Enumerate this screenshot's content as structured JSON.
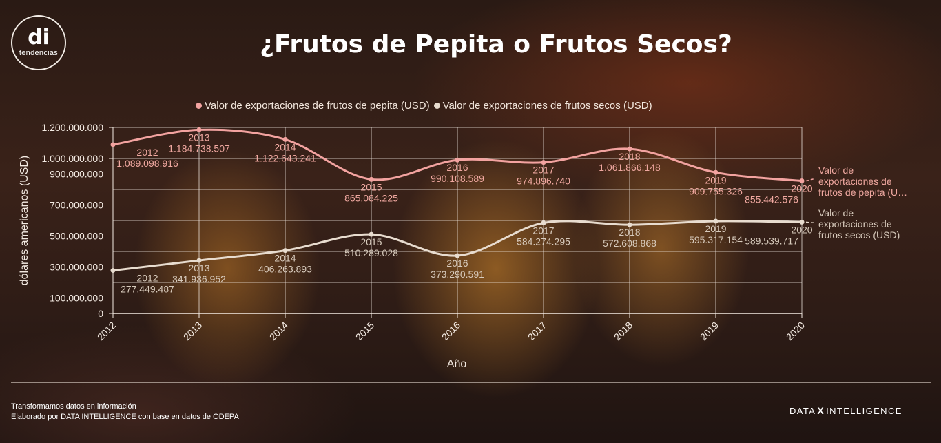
{
  "logo": {
    "mark": "di",
    "text": "tendencias"
  },
  "title": "¿Frutos de Pepita o Frutos Secos?",
  "footer": {
    "line1": "Transformamos datos en información",
    "line2": "Elaborado por DATA INTELLIGENCE con base en datos de ODEPA"
  },
  "brand": {
    "left": "DATA",
    "mark": "X",
    "right": "INTELLIGENCE"
  },
  "colors": {
    "pepita": "#f3a3a0",
    "secos": "#e8dccf"
  },
  "chart_data": {
    "type": "line",
    "title": "¿Frutos de Pepita o Frutos Secos?",
    "xlabel": "Año",
    "ylabel": "dólares americanos (USD)",
    "x": [
      "2012",
      "2013",
      "2014",
      "2015",
      "2016",
      "2017",
      "2018",
      "2019",
      "2020"
    ],
    "ylim": [
      0,
      1200000000
    ],
    "yticks": [
      {
        "value": 0,
        "label": "0"
      },
      {
        "value": 100000000,
        "label": "100.000.000"
      },
      {
        "value": 300000000,
        "label": "300.000.000"
      },
      {
        "value": 500000000,
        "label": "500.000.000"
      },
      {
        "value": 700000000,
        "label": "700.000.000"
      },
      {
        "value": 900000000,
        "label": "900.000.000"
      },
      {
        "value": 1000000000,
        "label": "1.000.000.000"
      },
      {
        "value": 1200000000,
        "label": "1.200.000.000"
      }
    ],
    "grid": true,
    "legend_position": "top",
    "series": [
      {
        "name": "Valor de exportaciones de frutos de pepita (USD)",
        "end_label": [
          "Valor de",
          "exportaciones de",
          "frutos de pepita (U…"
        ],
        "color": "#f3a3a0",
        "values": [
          1089098916,
          1184738507,
          1122643241,
          865084225,
          990108589,
          974896740,
          1061866148,
          909755326,
          855442576
        ],
        "labels": [
          "1.089.098.916",
          "1.184.738.507",
          "1.122.643.241",
          "865.084.225",
          "990.108.589",
          "974.896.740",
          "1.061.866.148",
          "909.755.326",
          "855.442.576"
        ]
      },
      {
        "name": "Valor de exportaciones de frutos secos (USD)",
        "end_label": [
          "Valor de",
          "exportaciones de",
          "frutos secos (USD)"
        ],
        "color": "#e8dccf",
        "values": [
          277449487,
          341936952,
          406263893,
          510289028,
          373290591,
          584274295,
          572608868,
          595317154,
          589539717
        ],
        "labels": [
          "277.449.487",
          "341.936.952",
          "406.263.893",
          "510.289.028",
          "373.290.591",
          "584.274.295",
          "572.608.868",
          "595.317.154",
          "589.539.717"
        ]
      }
    ]
  }
}
